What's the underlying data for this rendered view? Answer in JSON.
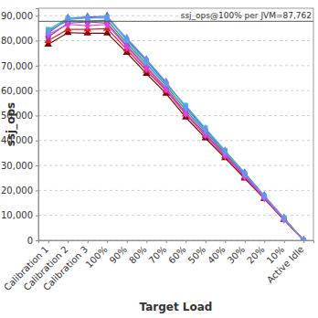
{
  "chart_data": {
    "type": "line",
    "x_label": "Target Load",
    "y_label": "ssj_ops",
    "categories": [
      "Calibration 1",
      "Calibration 2",
      "Calibration 3",
      "100%",
      "90%",
      "80%",
      "70%",
      "60%",
      "50%",
      "40%",
      "30%",
      "20%",
      "10%",
      "Active Idle"
    ],
    "series": [
      {
        "color": "#800000",
        "marker": "triangle",
        "values": [
          78500,
          83200,
          83000,
          83000,
          75200,
          66800,
          58800,
          49300,
          41000,
          33000,
          24900,
          16600,
          8200,
          0
        ]
      },
      {
        "color": "#e02020",
        "marker": "triangle",
        "values": [
          80000,
          84500,
          84500,
          84800,
          76500,
          68000,
          60000,
          50500,
          42000,
          33700,
          25400,
          16900,
          8400,
          0
        ]
      },
      {
        "color": "#20a040",
        "marker": "square",
        "values": [
          84000,
          88000,
          87800,
          88200,
          79000,
          70500,
          62000,
          52000,
          43500,
          35000,
          26200,
          17500,
          8700,
          0
        ]
      },
      {
        "color": "#4050e0",
        "marker": "diamond",
        "values": [
          83000,
          89000,
          89500,
          89800,
          80500,
          72000,
          63000,
          53500,
          44500,
          35800,
          27000,
          17900,
          8900,
          0
        ]
      },
      {
        "color": "#9040c0",
        "marker": "circle",
        "values": [
          81500,
          87000,
          87500,
          87000,
          78000,
          69500,
          61000,
          51000,
          42800,
          34400,
          25800,
          17200,
          8600,
          0
        ]
      },
      {
        "color": "#40c0d0",
        "marker": "square",
        "values": [
          84500,
          89000,
          89000,
          89500,
          80000,
          71000,
          62500,
          54000,
          45000,
          36000,
          26800,
          17800,
          8800,
          0
        ]
      },
      {
        "color": "#e040e0",
        "marker": "diamond",
        "values": [
          82500,
          86500,
          86000,
          86500,
          77500,
          69000,
          60500,
          50800,
          42300,
          34000,
          25600,
          17000,
          8500,
          0
        ]
      },
      {
        "color": "#7090f0",
        "marker": "diamond",
        "values": [
          83500,
          88500,
          89200,
          89000,
          81000,
          72500,
          63500,
          53000,
          44000,
          35500,
          26500,
          17600,
          8800,
          0
        ]
      }
    ],
    "annotations": [
      {
        "text": "ssj_ops@100% per JVM=87,762",
        "value": 87762
      }
    ],
    "ylim": [
      0,
      93000
    ],
    "yticks": [
      0,
      {
        "value": 10000,
        "label": "10,000"
      },
      {
        "value": 20000,
        "label": "20,000"
      },
      {
        "value": 30000,
        "label": "30,000"
      },
      {
        "value": 40000,
        "label": "40,000"
      },
      {
        "value": 50000,
        "label": "50,000"
      },
      {
        "value": 60000,
        "label": "60,000"
      },
      {
        "value": 70000,
        "label": "70,000"
      },
      {
        "value": 80000,
        "label": "80,000"
      },
      {
        "value": 90000,
        "label": "90,000"
      }
    ],
    "grid": true
  }
}
